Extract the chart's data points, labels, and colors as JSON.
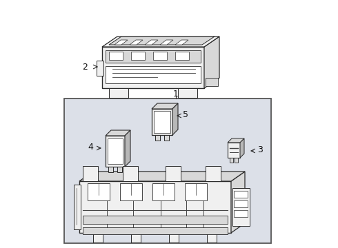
{
  "bg": "#ffffff",
  "inner_box_bg": "#dce0e8",
  "lc": "#2a2a2a",
  "lc_thin": "#444444",
  "fc_light": "#f0f0f0",
  "fc_mid": "#d8d8d8",
  "fc_dark": "#b8b8b8",
  "fc_white": "#ffffff",
  "label_color": "#111111"
}
